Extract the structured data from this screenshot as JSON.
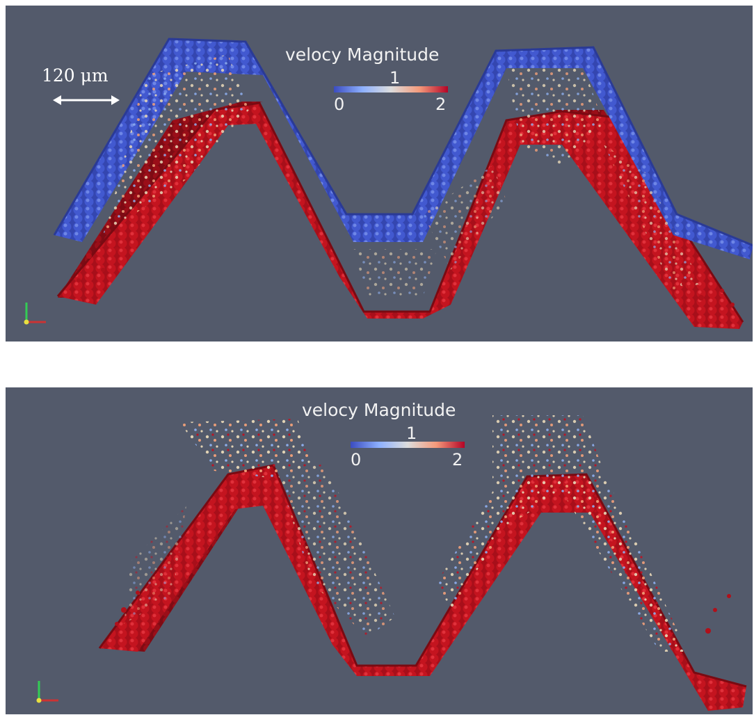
{
  "panels": [
    {
      "id": "top",
      "colorbar": {
        "title": "velocy Magnitude",
        "min": "0",
        "mid": "1",
        "max": "2"
      },
      "scale_bar": {
        "label": "120 μm"
      }
    },
    {
      "id": "bottom",
      "colorbar": {
        "title": "velocy Magnitude",
        "min": "0",
        "mid": "1",
        "max": "2"
      }
    }
  ],
  "colors": {
    "background": "#535a6b",
    "blue_particles": "#3a50c8",
    "red_particles": "#b0101a",
    "light_particles": "#e8d8b8",
    "colormap": [
      "#3b4cc0",
      "#8db0fe",
      "#dddddd",
      "#f49a7b",
      "#b40426"
    ]
  }
}
